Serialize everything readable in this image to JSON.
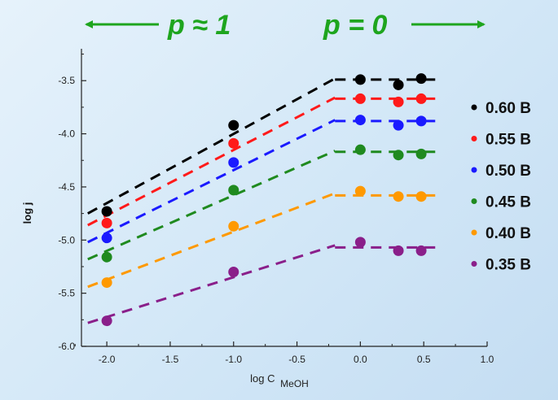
{
  "chart_data": {
    "type": "scatter",
    "xlabel": "log C",
    "xlabel_subscript": "MeOH",
    "ylabel": "log j",
    "xlim": [
      -2.2,
      1.0
    ],
    "ylim": [
      -6.0,
      -3.2
    ],
    "xticks": [
      "-2.0",
      "-1.5",
      "-1.0",
      "-0.5",
      "0.0",
      "0.5",
      "1.0"
    ],
    "yticks": [
      "-3.5",
      "-4.0",
      "-4.5",
      "-5.0",
      "-5.5",
      "-6.0"
    ],
    "grid": false,
    "legend_position": "right",
    "annotations": {
      "left": "p ≈ 1",
      "right": "p = 0"
    },
    "series": [
      {
        "name": "0.60 В",
        "color": "#000000",
        "x": [
          -2.0,
          -1.0,
          0.0,
          0.3,
          0.48
        ],
        "y": [
          -4.73,
          -3.92,
          -3.49,
          -3.54,
          -3.48
        ],
        "fit_left": [
          [
            -2.15,
            -4.75
          ],
          [
            -0.2,
            -3.48
          ]
        ],
        "fit_right": [
          [
            -0.2,
            -3.49
          ],
          [
            0.6,
            -3.49
          ]
        ]
      },
      {
        "name": "0.55 В",
        "color": "#ff1a1a",
        "x": [
          -2.0,
          -1.0,
          0.0,
          0.3,
          0.48
        ],
        "y": [
          -4.84,
          -4.09,
          -3.67,
          -3.7,
          -3.67
        ],
        "fit_left": [
          [
            -2.15,
            -4.86
          ],
          [
            -0.2,
            -3.66
          ]
        ],
        "fit_right": [
          [
            -0.2,
            -3.67
          ],
          [
            0.6,
            -3.67
          ]
        ]
      },
      {
        "name": "0.50 В",
        "color": "#1a1aff",
        "x": [
          -2.0,
          -1.0,
          0.0,
          0.3,
          0.48
        ],
        "y": [
          -4.98,
          -4.27,
          -3.87,
          -3.92,
          -3.88
        ],
        "fit_left": [
          [
            -2.15,
            -5.02
          ],
          [
            -0.2,
            -3.87
          ]
        ],
        "fit_right": [
          [
            -0.2,
            -3.88
          ],
          [
            0.6,
            -3.88
          ]
        ]
      },
      {
        "name": "0.45 В",
        "color": "#1f8a1f",
        "x": [
          -2.0,
          -1.0,
          0.0,
          0.3,
          0.48
        ],
        "y": [
          -5.16,
          -4.53,
          -4.15,
          -4.2,
          -4.19
        ],
        "fit_left": [
          [
            -2.15,
            -5.18
          ],
          [
            -0.2,
            -4.16
          ]
        ],
        "fit_right": [
          [
            -0.2,
            -4.17
          ],
          [
            0.6,
            -4.17
          ]
        ]
      },
      {
        "name": "0.40 В",
        "color": "#ff9900",
        "x": [
          -2.0,
          -1.0,
          0.0,
          0.3,
          0.48
        ],
        "y": [
          -5.4,
          -4.87,
          -4.54,
          -4.59,
          -4.59
        ],
        "fit_left": [
          [
            -2.15,
            -5.44
          ],
          [
            -0.2,
            -4.56
          ]
        ],
        "fit_right": [
          [
            -0.2,
            -4.58
          ],
          [
            0.6,
            -4.58
          ]
        ]
      },
      {
        "name": "0.35 В",
        "color": "#8a1f8a",
        "x": [
          -2.0,
          -1.0,
          0.0,
          0.3,
          0.48
        ],
        "y": [
          -5.76,
          -5.3,
          -5.02,
          -5.1,
          -5.1
        ],
        "fit_left": [
          [
            -2.15,
            -5.78
          ],
          [
            -0.2,
            -5.05
          ]
        ],
        "fit_right": [
          [
            -0.2,
            -5.07
          ],
          [
            0.6,
            -5.07
          ]
        ]
      }
    ]
  }
}
